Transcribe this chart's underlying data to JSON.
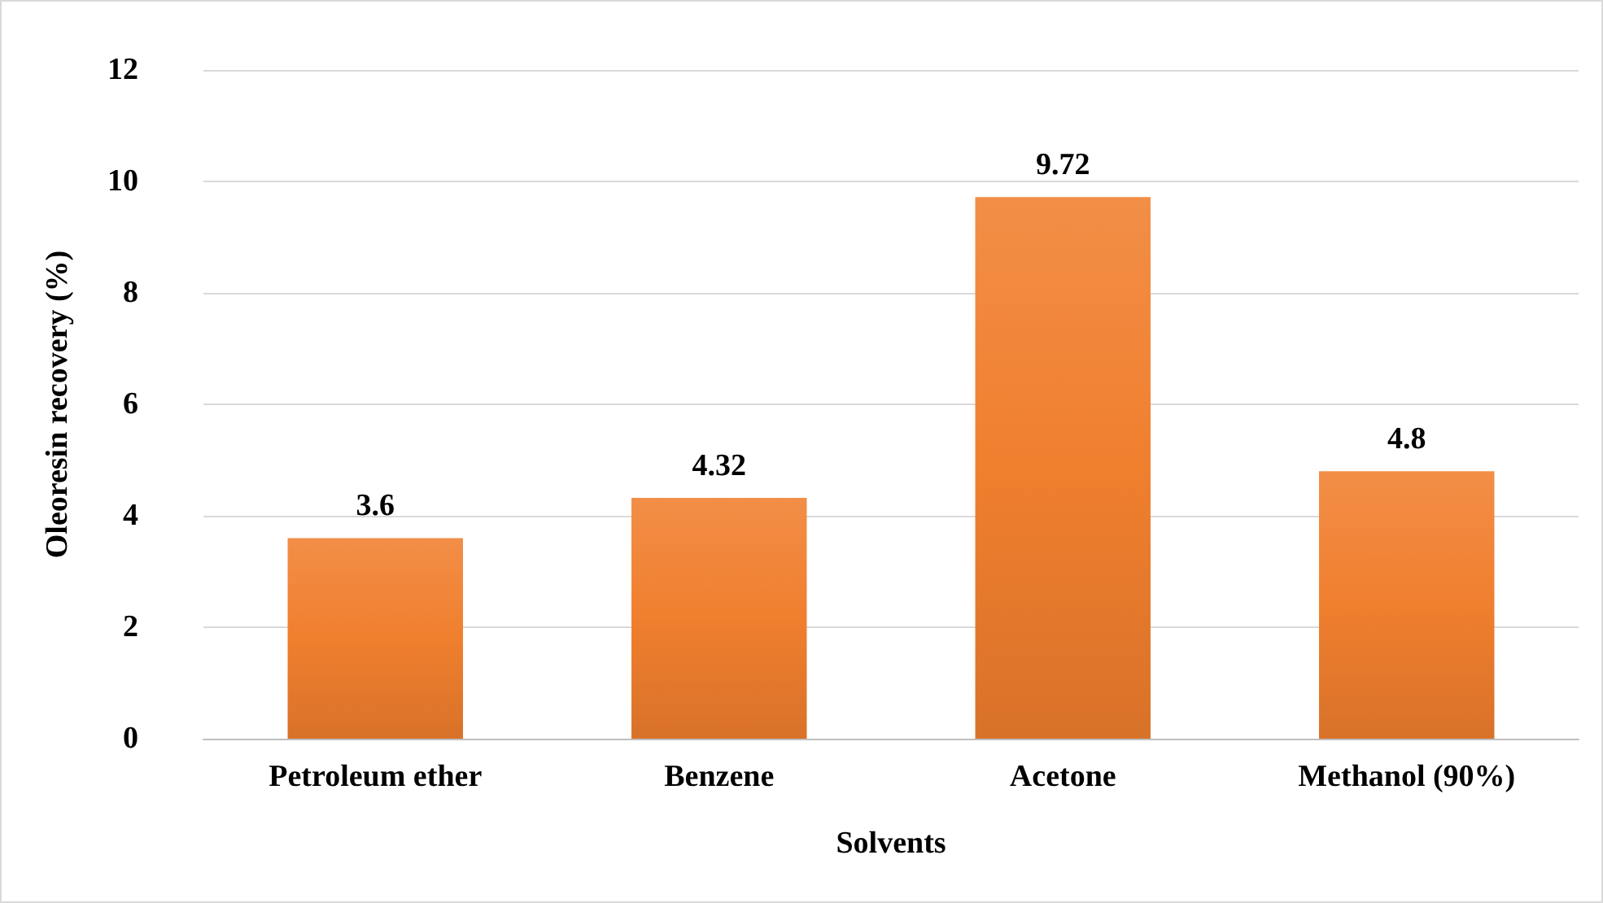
{
  "chart_data": {
    "type": "bar",
    "xlabel": "Solvents",
    "ylabel": "Oleoresin recovery (%)",
    "categories": [
      "Petroleum ether",
      "Benzene",
      "Acetone",
      "Methanol (90%)"
    ],
    "values": [
      3.6,
      4.32,
      9.72,
      4.8
    ],
    "color": "#f07f2e",
    "ylim": [
      0,
      12
    ],
    "yticks": [
      0,
      2,
      4,
      6,
      8,
      10,
      12
    ],
    "grid": "y",
    "data_labels": true
  }
}
